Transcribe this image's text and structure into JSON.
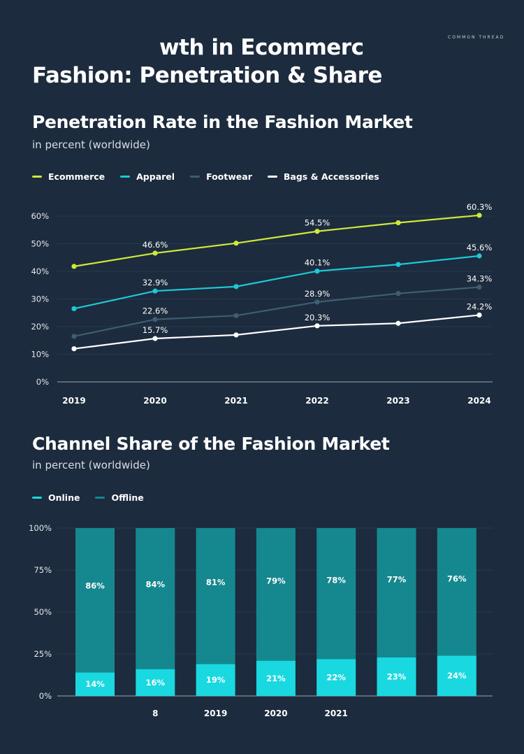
{
  "header": {
    "title_line1": "wth in Ecommerc",
    "title_line2": "Fashion: Penetration & Share",
    "brand": "COMMON THREAD"
  },
  "penetration": {
    "title": "Penetration Rate in the Fashion Market",
    "subtitle": "in percent (worldwide)"
  },
  "channel": {
    "title": "Channel Share of the Fashion Market",
    "subtitle": "in percent (worldwide)"
  },
  "chart_data": [
    {
      "type": "line",
      "title": "Penetration Rate in the Fashion Market",
      "subtitle": "in percent (worldwide)",
      "x": [
        "2019",
        "2020",
        "2021",
        "2022",
        "2023",
        "2024"
      ],
      "ylim": [
        0,
        60
      ],
      "yticks": [
        "0%",
        "10%",
        "20%",
        "30%",
        "40%",
        "50%",
        "60%"
      ],
      "grid": true,
      "legend": "top-left",
      "series": [
        {
          "name": "Ecommerce",
          "color": "#cfe83a",
          "values": [
            41.8,
            46.6,
            50.2,
            54.5,
            57.6,
            60.3
          ],
          "labels": [
            "",
            "46.6%",
            "",
            "54.5%",
            "",
            "60.3%"
          ]
        },
        {
          "name": "Apparel",
          "color": "#1ec8d6",
          "values": [
            26.5,
            32.9,
            34.5,
            40.1,
            42.5,
            45.6
          ],
          "labels": [
            "",
            "32.9%",
            "",
            "40.1%",
            "",
            "45.6%"
          ]
        },
        {
          "name": "Footwear",
          "color": "#3d5f6f",
          "values": [
            16.5,
            22.6,
            24.0,
            28.9,
            32.0,
            34.3
          ],
          "labels": [
            "",
            "22.6%",
            "",
            "28.9%",
            "",
            "34.3%"
          ]
        },
        {
          "name": "Bags & Accessories",
          "color": "#ffffff",
          "values": [
            12.0,
            15.7,
            17.0,
            20.3,
            21.2,
            24.2
          ],
          "labels": [
            "",
            "15.7%",
            "",
            "20.3%",
            "",
            "24.2%"
          ]
        }
      ]
    },
    {
      "type": "bar",
      "stacked": true,
      "title": "Channel Share of the Fashion Market",
      "subtitle": "in percent (worldwide)",
      "categories": [
        "",
        "8",
        "2019",
        "2020",
        "2021",
        "",
        ""
      ],
      "ylim": [
        0,
        100
      ],
      "yticks": [
        "0%",
        "25%",
        "50%",
        "75%",
        "100%"
      ],
      "legend": "top-left",
      "series": [
        {
          "name": "Online",
          "color": "#1ad8e0",
          "values": [
            14,
            16,
            19,
            21,
            22,
            23,
            24
          ],
          "labels": [
            "14%",
            "16%",
            "19%",
            "21%",
            "22%",
            "23%",
            "24%"
          ]
        },
        {
          "name": "Offline",
          "color": "#15888f",
          "values": [
            86,
            84,
            81,
            79,
            78,
            77,
            76
          ],
          "labels": [
            "86%",
            "84%",
            "81%",
            "79%",
            "78%",
            "77%",
            "76%"
          ]
        }
      ]
    }
  ]
}
